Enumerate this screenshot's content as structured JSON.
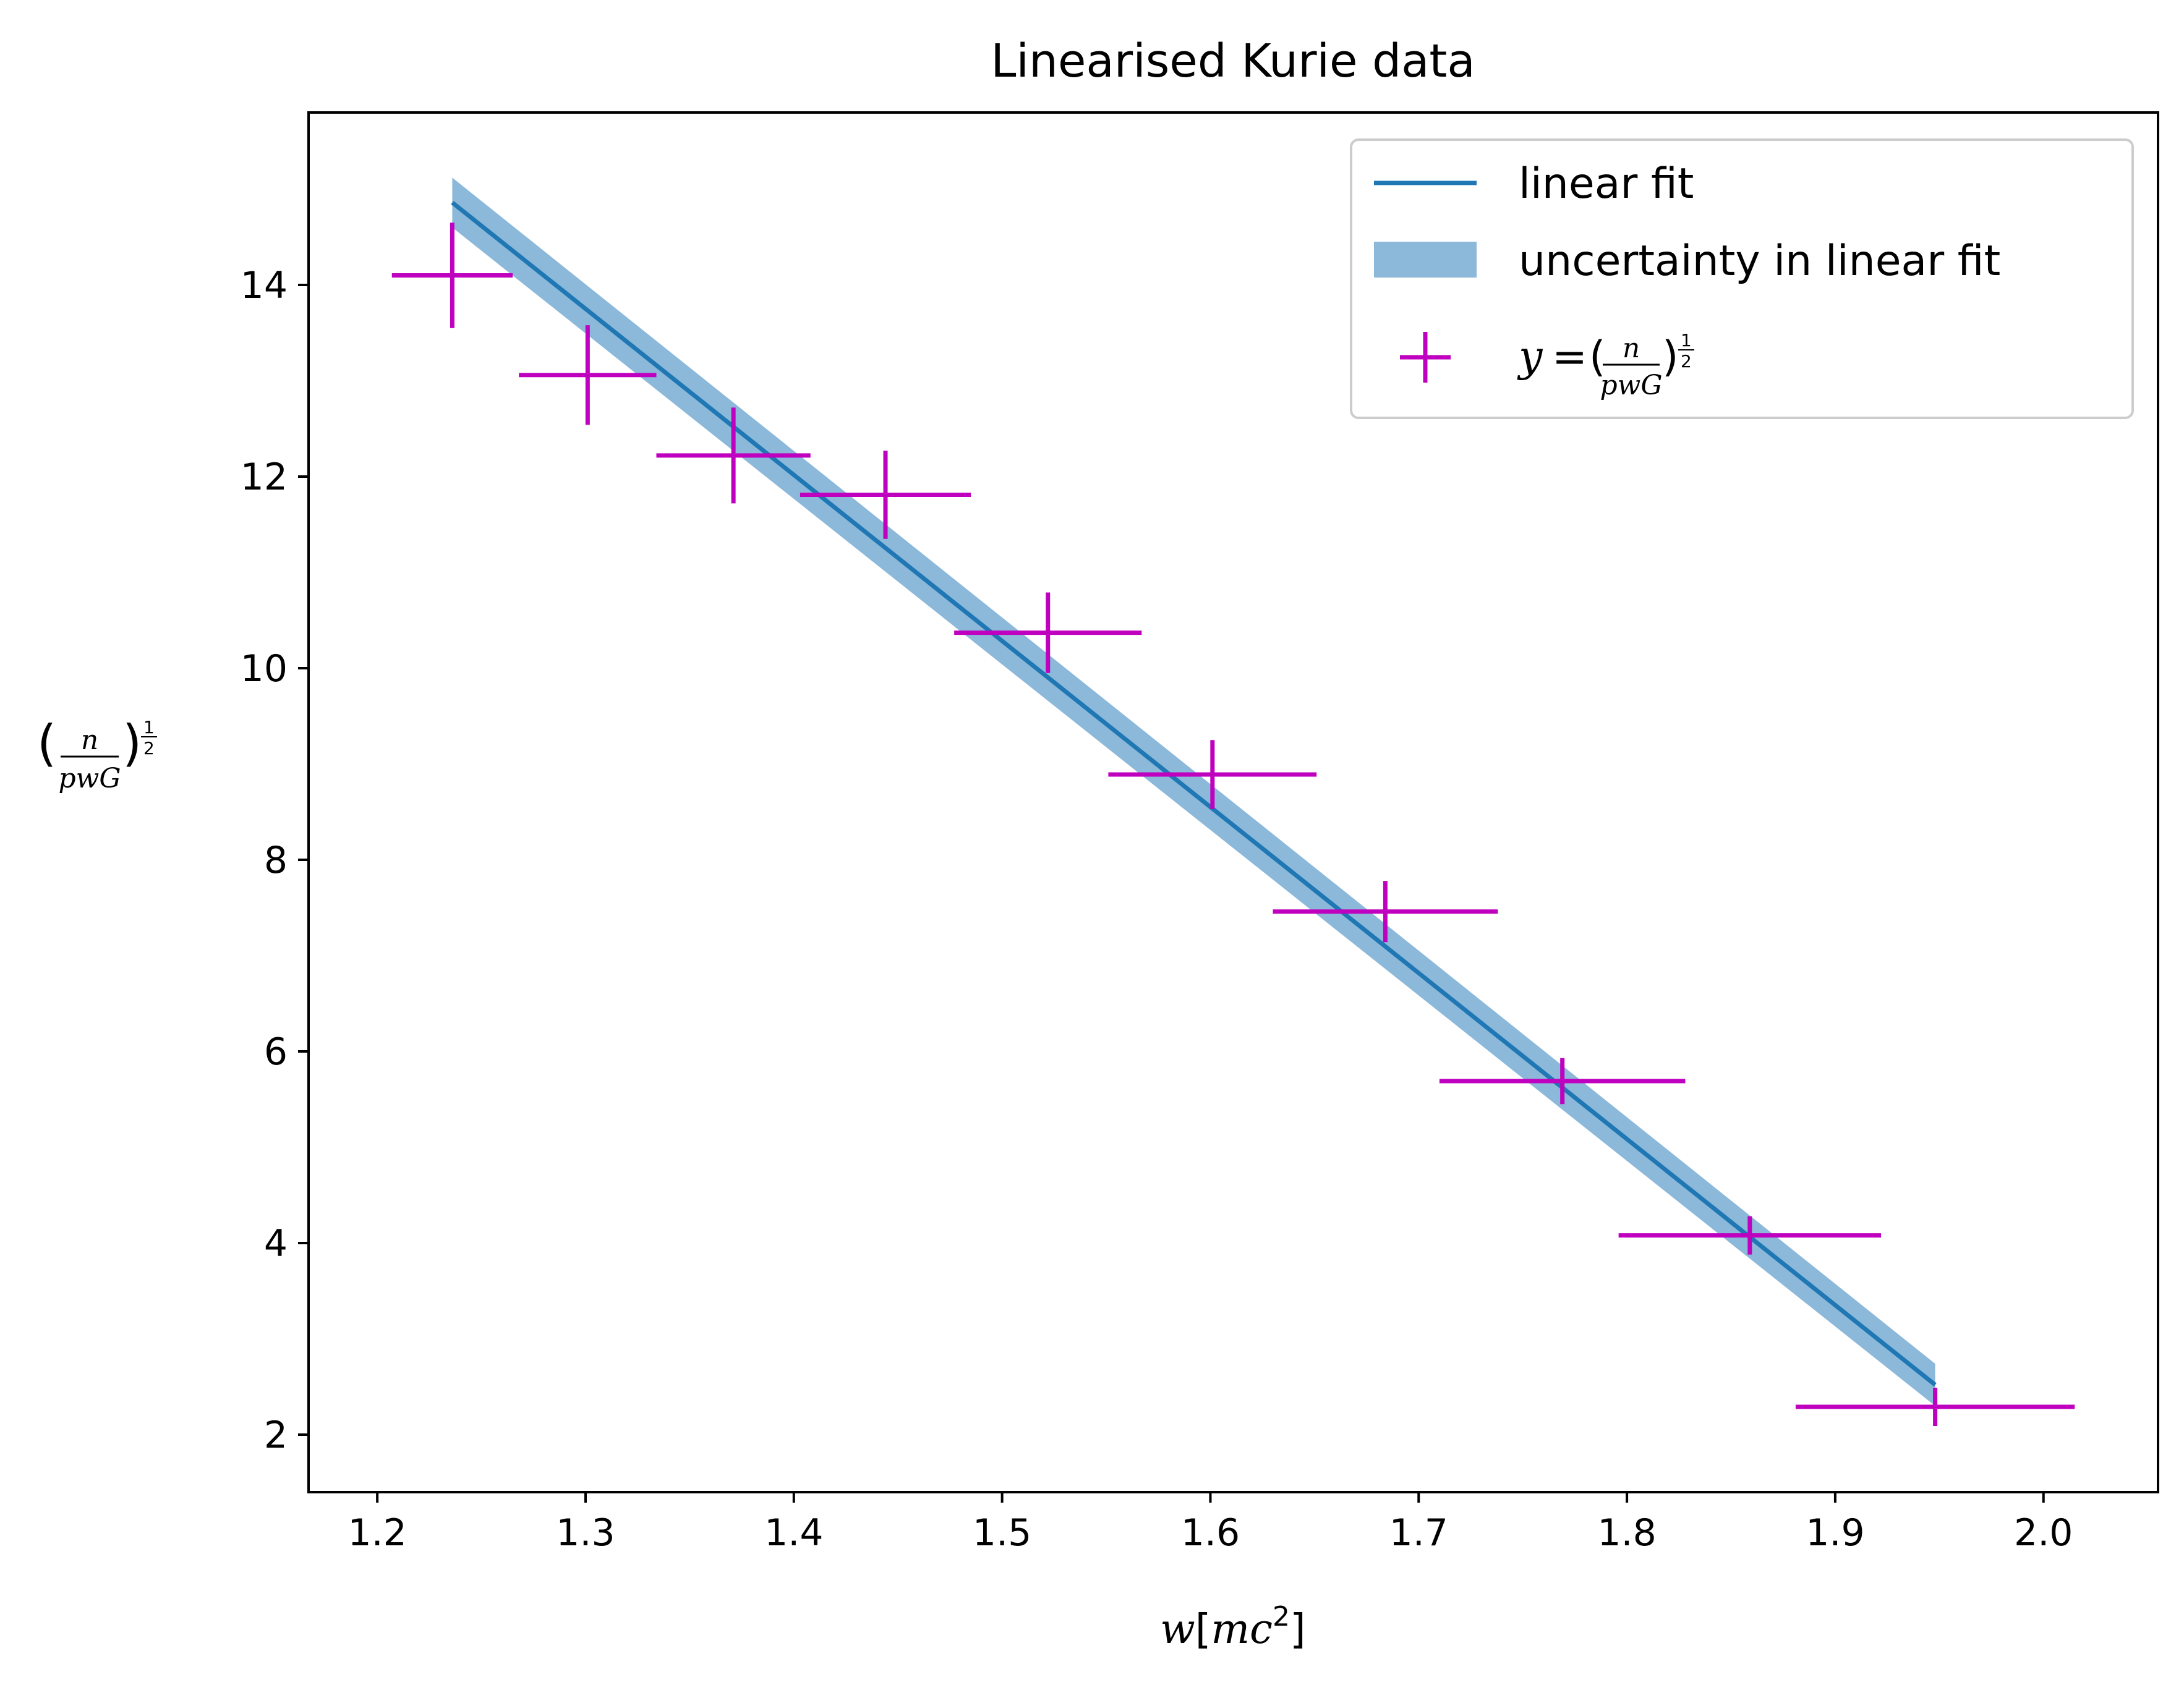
{
  "chart_data": {
    "type": "scatter",
    "title": "Linearised Kurie data",
    "xlabel": "w[mc²]",
    "ylabel": "(n/pwG)^½",
    "xlim": [
      1.167,
      2.055
    ],
    "ylim": [
      1.4,
      15.8
    ],
    "xticks": [
      1.2,
      1.3,
      1.4,
      1.5,
      1.6,
      1.7,
      1.8,
      1.9,
      2.0
    ],
    "xtick_labels": [
      "1.2",
      "1.3",
      "1.4",
      "1.5",
      "1.6",
      "1.7",
      "1.8",
      "1.9",
      "2.0"
    ],
    "yticks": [
      2,
      4,
      6,
      8,
      10,
      12,
      14
    ],
    "ytick_labels": [
      "2",
      "4",
      "6",
      "8",
      "10",
      "12",
      "14"
    ],
    "grid": false,
    "legend_position": "top-right",
    "legend": [
      {
        "key": "fit",
        "label": "linear fit"
      },
      {
        "key": "band",
        "label": "uncertainty in linear fit"
      },
      {
        "key": "data",
        "label": "y = (n/pwG)^½"
      }
    ],
    "colors": {
      "fit": "#1f77b4",
      "band": "#8cb8da",
      "data": "#bf00bf"
    },
    "fit": {
      "x": [
        1.236,
        1.948
      ],
      "y": [
        14.86,
        2.52
      ]
    },
    "band": {
      "x": [
        1.236,
        1.948
      ],
      "upper": [
        15.12,
        2.74
      ],
      "lower": [
        14.6,
        2.3
      ]
    },
    "data": {
      "x": [
        1.236,
        1.301,
        1.371,
        1.444,
        1.522,
        1.601,
        1.684,
        1.769,
        1.859,
        1.948
      ],
      "y": [
        14.1,
        13.06,
        12.22,
        11.81,
        10.37,
        8.89,
        7.46,
        5.69,
        4.08,
        2.29
      ],
      "x_err": [
        0.029,
        0.033,
        0.037,
        0.041,
        0.045,
        0.05,
        0.054,
        0.059,
        0.063,
        0.067
      ],
      "y_err": [
        0.55,
        0.52,
        0.5,
        0.46,
        0.42,
        0.36,
        0.32,
        0.24,
        0.2,
        0.2
      ]
    }
  }
}
